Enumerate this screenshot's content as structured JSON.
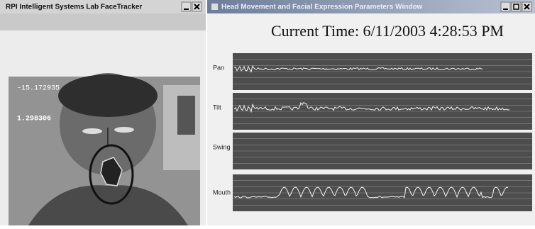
{
  "left_window": {
    "title": "RPI Intelligent Systems Lab FaceTracker",
    "readout_1": "-15.172935",
    "readout_2": "1.298306"
  },
  "right_window": {
    "title": "Head Movement and Facial Expression Parameters Window",
    "current_time": "Current Time: 6/11/2003 4:28:53 PM",
    "panels": [
      "Pan",
      "Tilt",
      "Swing",
      "Mouth"
    ]
  }
}
